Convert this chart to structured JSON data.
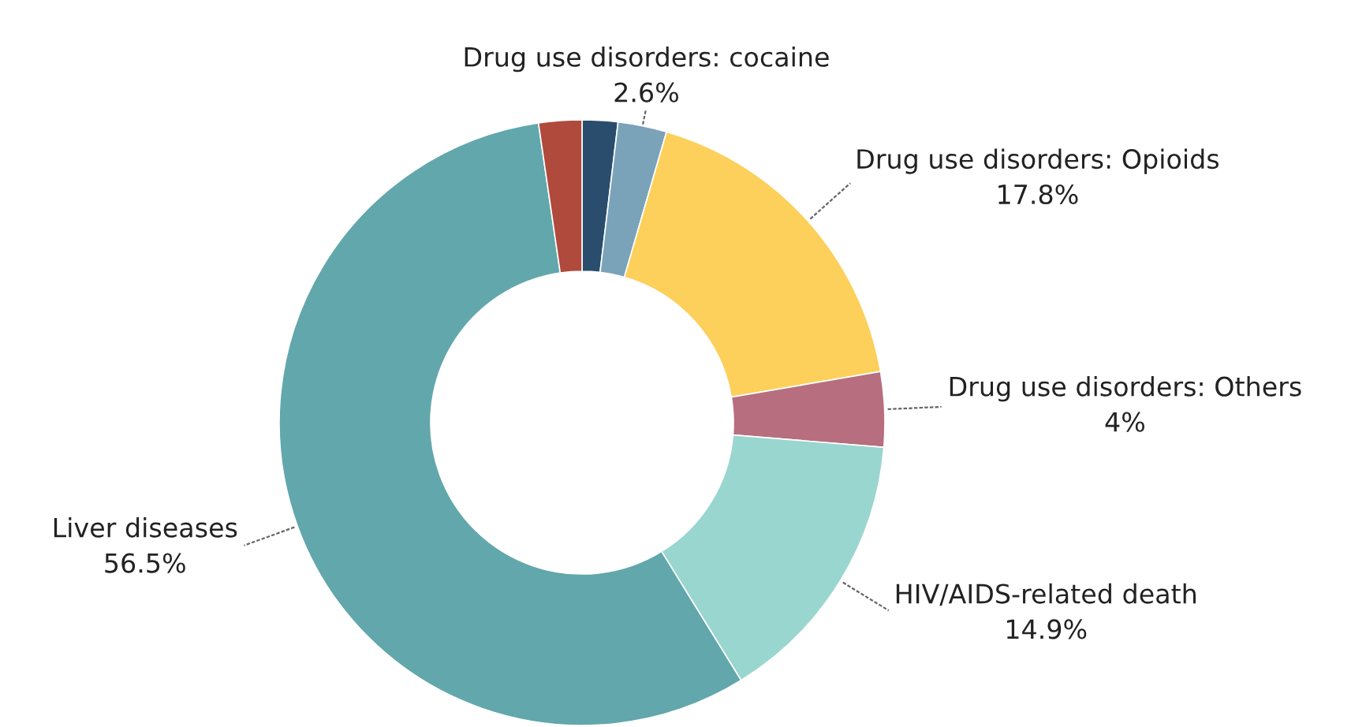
{
  "chart_data": {
    "type": "donut",
    "categories": [
      null,
      "Drug use disorders: cocaine",
      "Drug use disorders: Opioids",
      "Drug use disorders: Others",
      "HIV/AIDS-related death",
      "Liver diseases",
      null
    ],
    "values": [
      1.9,
      2.6,
      17.8,
      4,
      14.9,
      56.5,
      2.3
    ],
    "colors": [
      "#2a4d6e",
      "#7aa3ba",
      "#fcd05a",
      "#b76e7e",
      "#99d6cf",
      "#62a7ab",
      "#b04a3c"
    ],
    "value_labels": [
      null,
      "2.6%",
      "17.8%",
      "4%",
      "14.9%",
      "56.5%",
      null
    ]
  }
}
